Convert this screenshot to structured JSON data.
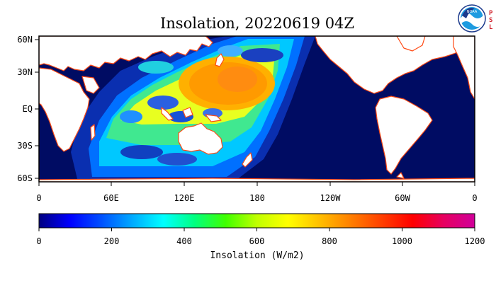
{
  "title": "Insolation, 20220619 04Z",
  "logos": {
    "noaa": {
      "text": "NOAA",
      "icon": "noaa-logo-icon"
    },
    "psl": {
      "text": "PSL",
      "letters": [
        "P",
        "S",
        "L"
      ],
      "color": "#d0202a"
    }
  },
  "map": {
    "lat_labels": [
      "60N",
      "30N",
      "EQ",
      "30S",
      "60S"
    ],
    "lon_labels": [
      "0",
      "60E",
      "120E",
      "180",
      "120W",
      "60W",
      "0"
    ],
    "ocean_color": "#000c63",
    "land_color": "#ffffff",
    "coast_color": "#ff4a14",
    "night_region": "Atlantic, Americas, Europe, Africa",
    "day_region": "Western Pacific, Asia, Indian Ocean, Australia"
  },
  "colorbar": {
    "ticks": [
      "0",
      "200",
      "400",
      "600",
      "800",
      "1000",
      "1200"
    ],
    "label": "Insolation (W/m2)",
    "min": 0,
    "max": 1200,
    "colors": [
      "#000080",
      "#0000ff",
      "#0050ff",
      "#00aaff",
      "#00ffff",
      "#00ff80",
      "#40ff00",
      "#c0ff00",
      "#ffff00",
      "#ffc000",
      "#ff8000",
      "#ff4000",
      "#ff0000",
      "#e60060",
      "#d0009a"
    ]
  }
}
